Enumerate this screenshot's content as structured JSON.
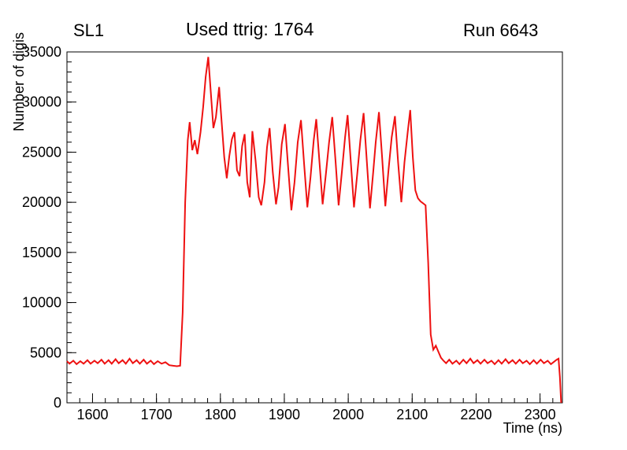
{
  "header": {
    "left": "SL1",
    "center": "Used ttrig: 1764",
    "right": "Run 6643"
  },
  "chart_data": {
    "type": "line",
    "series_name": "number-of-digis-timebox",
    "line_color": "#ee1111",
    "line_width": 2,
    "xlabel": "Time (ns)",
    "ylabel": "Number of digis",
    "xlim": [
      1560,
      2335
    ],
    "ylim": [
      0,
      35000
    ],
    "x_major_ticks": [
      1600,
      1700,
      1800,
      1900,
      2000,
      2100,
      2200,
      2300
    ],
    "x_minor_step": 20,
    "y_major_ticks": [
      0,
      5000,
      10000,
      15000,
      20000,
      25000,
      30000,
      35000
    ],
    "y_minor_step": 1000,
    "grid": false,
    "legend": "none",
    "points": [
      [
        1560,
        4150
      ],
      [
        1564,
        3900
      ],
      [
        1570,
        4200
      ],
      [
        1575,
        3850
      ],
      [
        1581,
        4150
      ],
      [
        1586,
        3900
      ],
      [
        1592,
        4250
      ],
      [
        1597,
        3900
      ],
      [
        1603,
        4200
      ],
      [
        1608,
        3950
      ],
      [
        1614,
        4300
      ],
      [
        1619,
        3900
      ],
      [
        1625,
        4250
      ],
      [
        1630,
        3900
      ],
      [
        1636,
        4350
      ],
      [
        1641,
        3950
      ],
      [
        1647,
        4250
      ],
      [
        1652,
        3900
      ],
      [
        1658,
        4400
      ],
      [
        1663,
        3950
      ],
      [
        1669,
        4250
      ],
      [
        1674,
        3900
      ],
      [
        1680,
        4300
      ],
      [
        1685,
        3900
      ],
      [
        1691,
        4200
      ],
      [
        1696,
        3850
      ],
      [
        1702,
        4150
      ],
      [
        1708,
        3900
      ],
      [
        1714,
        4050
      ],
      [
        1720,
        3750
      ],
      [
        1726,
        3700
      ],
      [
        1732,
        3650
      ],
      [
        1737,
        3700
      ],
      [
        1741,
        9000
      ],
      [
        1745,
        20000
      ],
      [
        1749,
        26200
      ],
      [
        1752,
        28000
      ],
      [
        1756,
        25200
      ],
      [
        1760,
        26200
      ],
      [
        1764,
        24800
      ],
      [
        1769,
        27000
      ],
      [
        1773,
        29500
      ],
      [
        1777,
        32500
      ],
      [
        1781,
        34500
      ],
      [
        1785,
        31000
      ],
      [
        1789,
        27400
      ],
      [
        1793,
        28500
      ],
      [
        1798,
        31500
      ],
      [
        1802,
        28000
      ],
      [
        1806,
        24500
      ],
      [
        1810,
        22400
      ],
      [
        1814,
        24600
      ],
      [
        1818,
        26300
      ],
      [
        1822,
        27000
      ],
      [
        1826,
        23200
      ],
      [
        1830,
        22600
      ],
      [
        1834,
        25600
      ],
      [
        1838,
        26800
      ],
      [
        1842,
        22000
      ],
      [
        1846,
        20500
      ],
      [
        1850,
        27100
      ],
      [
        1855,
        24200
      ],
      [
        1860,
        20500
      ],
      [
        1864,
        19700
      ],
      [
        1869,
        22000
      ],
      [
        1873,
        25500
      ],
      [
        1877,
        27400
      ],
      [
        1882,
        23000
      ],
      [
        1887,
        19800
      ],
      [
        1891,
        21500
      ],
      [
        1896,
        25800
      ],
      [
        1901,
        27800
      ],
      [
        1906,
        23500
      ],
      [
        1911,
        19200
      ],
      [
        1916,
        22000
      ],
      [
        1921,
        26000
      ],
      [
        1926,
        28200
      ],
      [
        1931,
        23800
      ],
      [
        1936,
        19500
      ],
      [
        1941,
        22500
      ],
      [
        1946,
        26200
      ],
      [
        1950,
        28300
      ],
      [
        1955,
        24000
      ],
      [
        1960,
        19800
      ],
      [
        1965,
        22800
      ],
      [
        1970,
        26000
      ],
      [
        1975,
        28500
      ],
      [
        1980,
        24200
      ],
      [
        1985,
        19700
      ],
      [
        1990,
        23000
      ],
      [
        1995,
        26500
      ],
      [
        1999,
        28700
      ],
      [
        2004,
        24000
      ],
      [
        2009,
        19500
      ],
      [
        2014,
        22800
      ],
      [
        2019,
        26200
      ],
      [
        2024,
        28900
      ],
      [
        2029,
        24200
      ],
      [
        2034,
        19400
      ],
      [
        2039,
        23000
      ],
      [
        2043,
        26000
      ],
      [
        2048,
        29000
      ],
      [
        2053,
        24500
      ],
      [
        2058,
        19600
      ],
      [
        2063,
        23200
      ],
      [
        2068,
        26500
      ],
      [
        2073,
        28600
      ],
      [
        2078,
        24000
      ],
      [
        2083,
        20000
      ],
      [
        2088,
        24000
      ],
      [
        2093,
        27000
      ],
      [
        2097,
        29200
      ],
      [
        2101,
        24500
      ],
      [
        2105,
        21200
      ],
      [
        2109,
        20400
      ],
      [
        2113,
        20100
      ],
      [
        2117,
        19900
      ],
      [
        2121,
        19700
      ],
      [
        2125,
        14000
      ],
      [
        2129,
        6800
      ],
      [
        2133,
        5300
      ],
      [
        2137,
        5700
      ],
      [
        2141,
        5100
      ],
      [
        2145,
        4500
      ],
      [
        2149,
        4200
      ],
      [
        2153,
        3950
      ],
      [
        2158,
        4300
      ],
      [
        2163,
        3900
      ],
      [
        2169,
        4200
      ],
      [
        2174,
        3850
      ],
      [
        2180,
        4300
      ],
      [
        2185,
        3950
      ],
      [
        2191,
        4400
      ],
      [
        2196,
        3950
      ],
      [
        2202,
        4250
      ],
      [
        2207,
        3900
      ],
      [
        2213,
        4300
      ],
      [
        2218,
        3950
      ],
      [
        2224,
        4200
      ],
      [
        2229,
        3850
      ],
      [
        2235,
        4250
      ],
      [
        2240,
        3900
      ],
      [
        2246,
        4350
      ],
      [
        2251,
        3950
      ],
      [
        2257,
        4250
      ],
      [
        2262,
        3900
      ],
      [
        2268,
        4300
      ],
      [
        2273,
        3950
      ],
      [
        2279,
        4200
      ],
      [
        2284,
        3850
      ],
      [
        2290,
        4250
      ],
      [
        2295,
        3900
      ],
      [
        2301,
        4300
      ],
      [
        2306,
        3950
      ],
      [
        2312,
        4200
      ],
      [
        2317,
        3850
      ],
      [
        2322,
        4100
      ],
      [
        2326,
        4300
      ],
      [
        2329,
        4400
      ],
      [
        2331,
        2600
      ],
      [
        2333,
        0
      ]
    ]
  }
}
